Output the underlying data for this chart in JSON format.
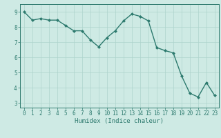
{
  "x": [
    0,
    1,
    2,
    3,
    4,
    5,
    6,
    7,
    8,
    9,
    10,
    11,
    12,
    13,
    14,
    15,
    16,
    17,
    18,
    19,
    20,
    21,
    22,
    23
  ],
  "y": [
    9.0,
    8.45,
    8.55,
    8.45,
    8.45,
    8.1,
    7.75,
    7.75,
    7.15,
    6.7,
    7.3,
    7.75,
    8.4,
    8.85,
    8.7,
    8.4,
    6.65,
    6.45,
    6.3,
    4.8,
    3.65,
    3.4,
    4.35,
    3.5
  ],
  "line_color": "#2d7a6e",
  "marker": "D",
  "markersize": 2.0,
  "linewidth": 1.0,
  "xlabel": "Humidex (Indice chaleur)",
  "xlim": [
    -0.5,
    23.5
  ],
  "ylim": [
    2.7,
    9.5
  ],
  "yticks": [
    3,
    4,
    5,
    6,
    7,
    8,
    9
  ],
  "xticks": [
    0,
    1,
    2,
    3,
    4,
    5,
    6,
    7,
    8,
    9,
    10,
    11,
    12,
    13,
    14,
    15,
    16,
    17,
    18,
    19,
    20,
    21,
    22,
    23
  ],
  "bg_color": "#ceeae4",
  "grid_color": "#aed4cc",
  "axis_color": "#2d7a6e",
  "tick_color": "#2d7a6e",
  "label_color": "#2d7a6e",
  "xlabel_fontsize": 6.5,
  "tick_fontsize": 5.5
}
